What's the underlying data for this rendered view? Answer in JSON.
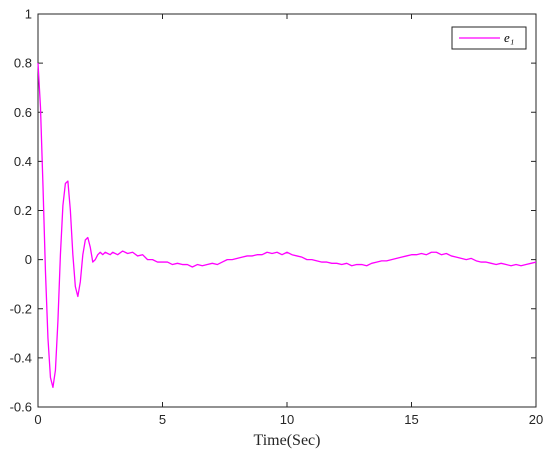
{
  "chart_data": {
    "type": "line",
    "title": "",
    "xlabel": "Time(Sec)",
    "ylabel": "",
    "xlim": [
      0,
      20
    ],
    "ylim": [
      -0.6,
      1
    ],
    "xticks": [
      0,
      5,
      10,
      15,
      20
    ],
    "yticks": [
      -0.6,
      -0.4,
      -0.2,
      0,
      0.2,
      0.4,
      0.6,
      0.8,
      1
    ],
    "xtick_labels": [
      "0",
      "5",
      "10",
      "15",
      "20"
    ],
    "ytick_labels": [
      "-0.6",
      "-0.4",
      "-0.2",
      "0",
      "0.2",
      "0.4",
      "0.6",
      "0.8",
      "1"
    ],
    "grid": false,
    "legend_position": "top-right",
    "series": [
      {
        "name": "e₁",
        "color": "#ff00ff",
        "x": [
          0,
          0.1,
          0.2,
          0.3,
          0.4,
          0.5,
          0.6,
          0.7,
          0.8,
          0.9,
          1.0,
          1.1,
          1.2,
          1.3,
          1.4,
          1.5,
          1.6,
          1.7,
          1.8,
          1.9,
          2.0,
          2.1,
          2.2,
          2.3,
          2.4,
          2.5,
          2.6,
          2.7,
          2.8,
          2.9,
          3.0,
          3.2,
          3.4,
          3.6,
          3.8,
          4.0,
          4.2,
          4.4,
          4.6,
          4.8,
          5.0,
          5.2,
          5.4,
          5.6,
          5.8,
          6.0,
          6.2,
          6.4,
          6.6,
          6.8,
          7.0,
          7.2,
          7.4,
          7.6,
          7.8,
          8.0,
          8.2,
          8.4,
          8.6,
          8.8,
          9.0,
          9.2,
          9.4,
          9.6,
          9.8,
          10.0,
          10.2,
          10.4,
          10.6,
          10.8,
          11.0,
          11.2,
          11.4,
          11.6,
          11.8,
          12.0,
          12.2,
          12.4,
          12.6,
          12.8,
          13.0,
          13.2,
          13.4,
          13.6,
          13.8,
          14.0,
          14.2,
          14.4,
          14.6,
          14.8,
          15.0,
          15.2,
          15.4,
          15.6,
          15.8,
          16.0,
          16.2,
          16.4,
          16.6,
          16.8,
          17.0,
          17.2,
          17.4,
          17.6,
          17.8,
          18.0,
          18.2,
          18.4,
          18.6,
          18.8,
          19.0,
          19.2,
          19.4,
          19.6,
          19.8,
          20.0
        ],
        "y": [
          0.8,
          0.62,
          0.3,
          -0.05,
          -0.32,
          -0.48,
          -0.52,
          -0.45,
          -0.25,
          0.02,
          0.22,
          0.31,
          0.32,
          0.2,
          0.02,
          -0.11,
          -0.15,
          -0.09,
          0.02,
          0.08,
          0.09,
          0.05,
          -0.01,
          0.0,
          0.02,
          0.03,
          0.02,
          0.03,
          0.025,
          0.02,
          0.03,
          0.02,
          0.035,
          0.025,
          0.03,
          0.015,
          0.02,
          0.0,
          0.0,
          -0.01,
          -0.01,
          -0.01,
          -0.02,
          -0.015,
          -0.02,
          -0.02,
          -0.03,
          -0.02,
          -0.025,
          -0.02,
          -0.015,
          -0.02,
          -0.01,
          0.0,
          0.0,
          0.005,
          0.01,
          0.015,
          0.015,
          0.02,
          0.02,
          0.03,
          0.025,
          0.03,
          0.02,
          0.03,
          0.02,
          0.015,
          0.01,
          0.0,
          0.0,
          -0.005,
          -0.01,
          -0.01,
          -0.015,
          -0.015,
          -0.02,
          -0.015,
          -0.025,
          -0.02,
          -0.02,
          -0.025,
          -0.015,
          -0.01,
          -0.005,
          -0.005,
          0.0,
          0.005,
          0.01,
          0.015,
          0.02,
          0.02,
          0.025,
          0.02,
          0.03,
          0.03,
          0.02,
          0.025,
          0.015,
          0.01,
          0.005,
          0.0,
          0.005,
          -0.005,
          -0.01,
          -0.01,
          -0.015,
          -0.02,
          -0.015,
          -0.02,
          -0.025,
          -0.02,
          -0.025,
          -0.02,
          -0.015,
          -0.01
        ]
      }
    ]
  }
}
